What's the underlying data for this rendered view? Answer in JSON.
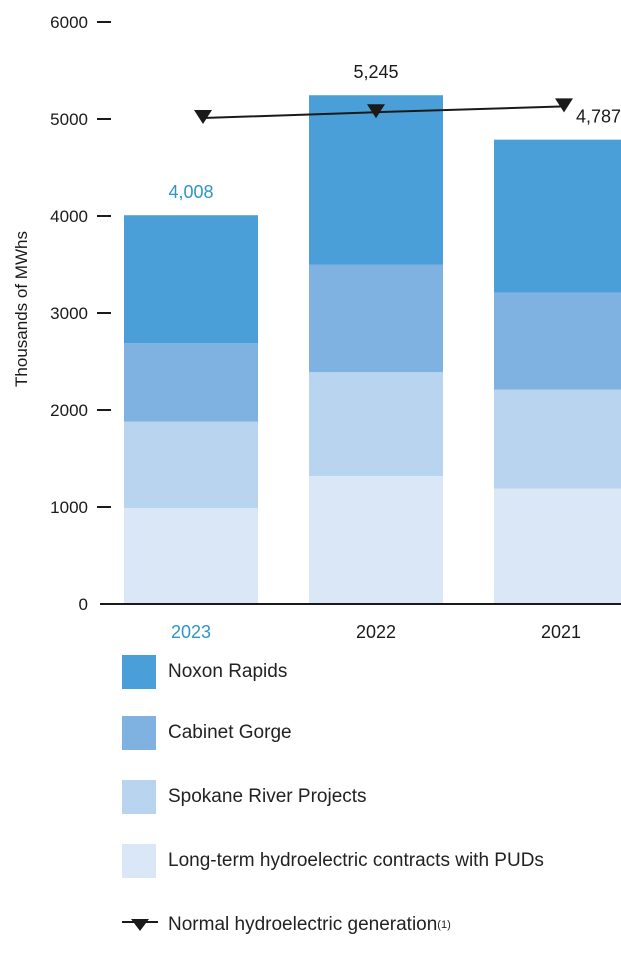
{
  "chart_data": {
    "type": "bar",
    "stacked": true,
    "categories": [
      "2023",
      "2022",
      "2021"
    ],
    "category_colors": [
      "#2f95c9",
      "#1a1a1a",
      "#1a1a1a"
    ],
    "ylabel": "Thousands of MWhs",
    "ylim": [
      0,
      6000
    ],
    "yticks": [
      "0",
      "1000",
      "2000",
      "3000",
      "4000",
      "5000",
      "6000"
    ],
    "series": [
      {
        "name": "Long-term hydroelectric contracts with PUDs",
        "color": "#d9e7f6",
        "values": [
          990,
          1320,
          1190
        ]
      },
      {
        "name": "Spokane River Projects",
        "color": "#b8d4ef",
        "values": [
          890,
          1070,
          1020
        ]
      },
      {
        "name": "Cabinet Gorge",
        "color": "#7fb2e0",
        "values": [
          810,
          1110,
          1000
        ]
      },
      {
        "name": "Noxon Rapids",
        "color": "#4a9fd8",
        "values": [
          1318,
          1745,
          1577
        ]
      }
    ],
    "totals": [
      {
        "label": "4,008",
        "value": 4008,
        "color": "#2f95c9"
      },
      {
        "label": "5,245",
        "value": 5245,
        "color": "#1a1a1a"
      },
      {
        "label": "4,787",
        "value": 4787,
        "color": "#1a1a1a"
      }
    ],
    "line_series": {
      "name": "Normal hydroelectric generation",
      "footnote": "(1)",
      "values": [
        5010,
        5070,
        5130
      ],
      "color": "#1a1a1a"
    }
  }
}
